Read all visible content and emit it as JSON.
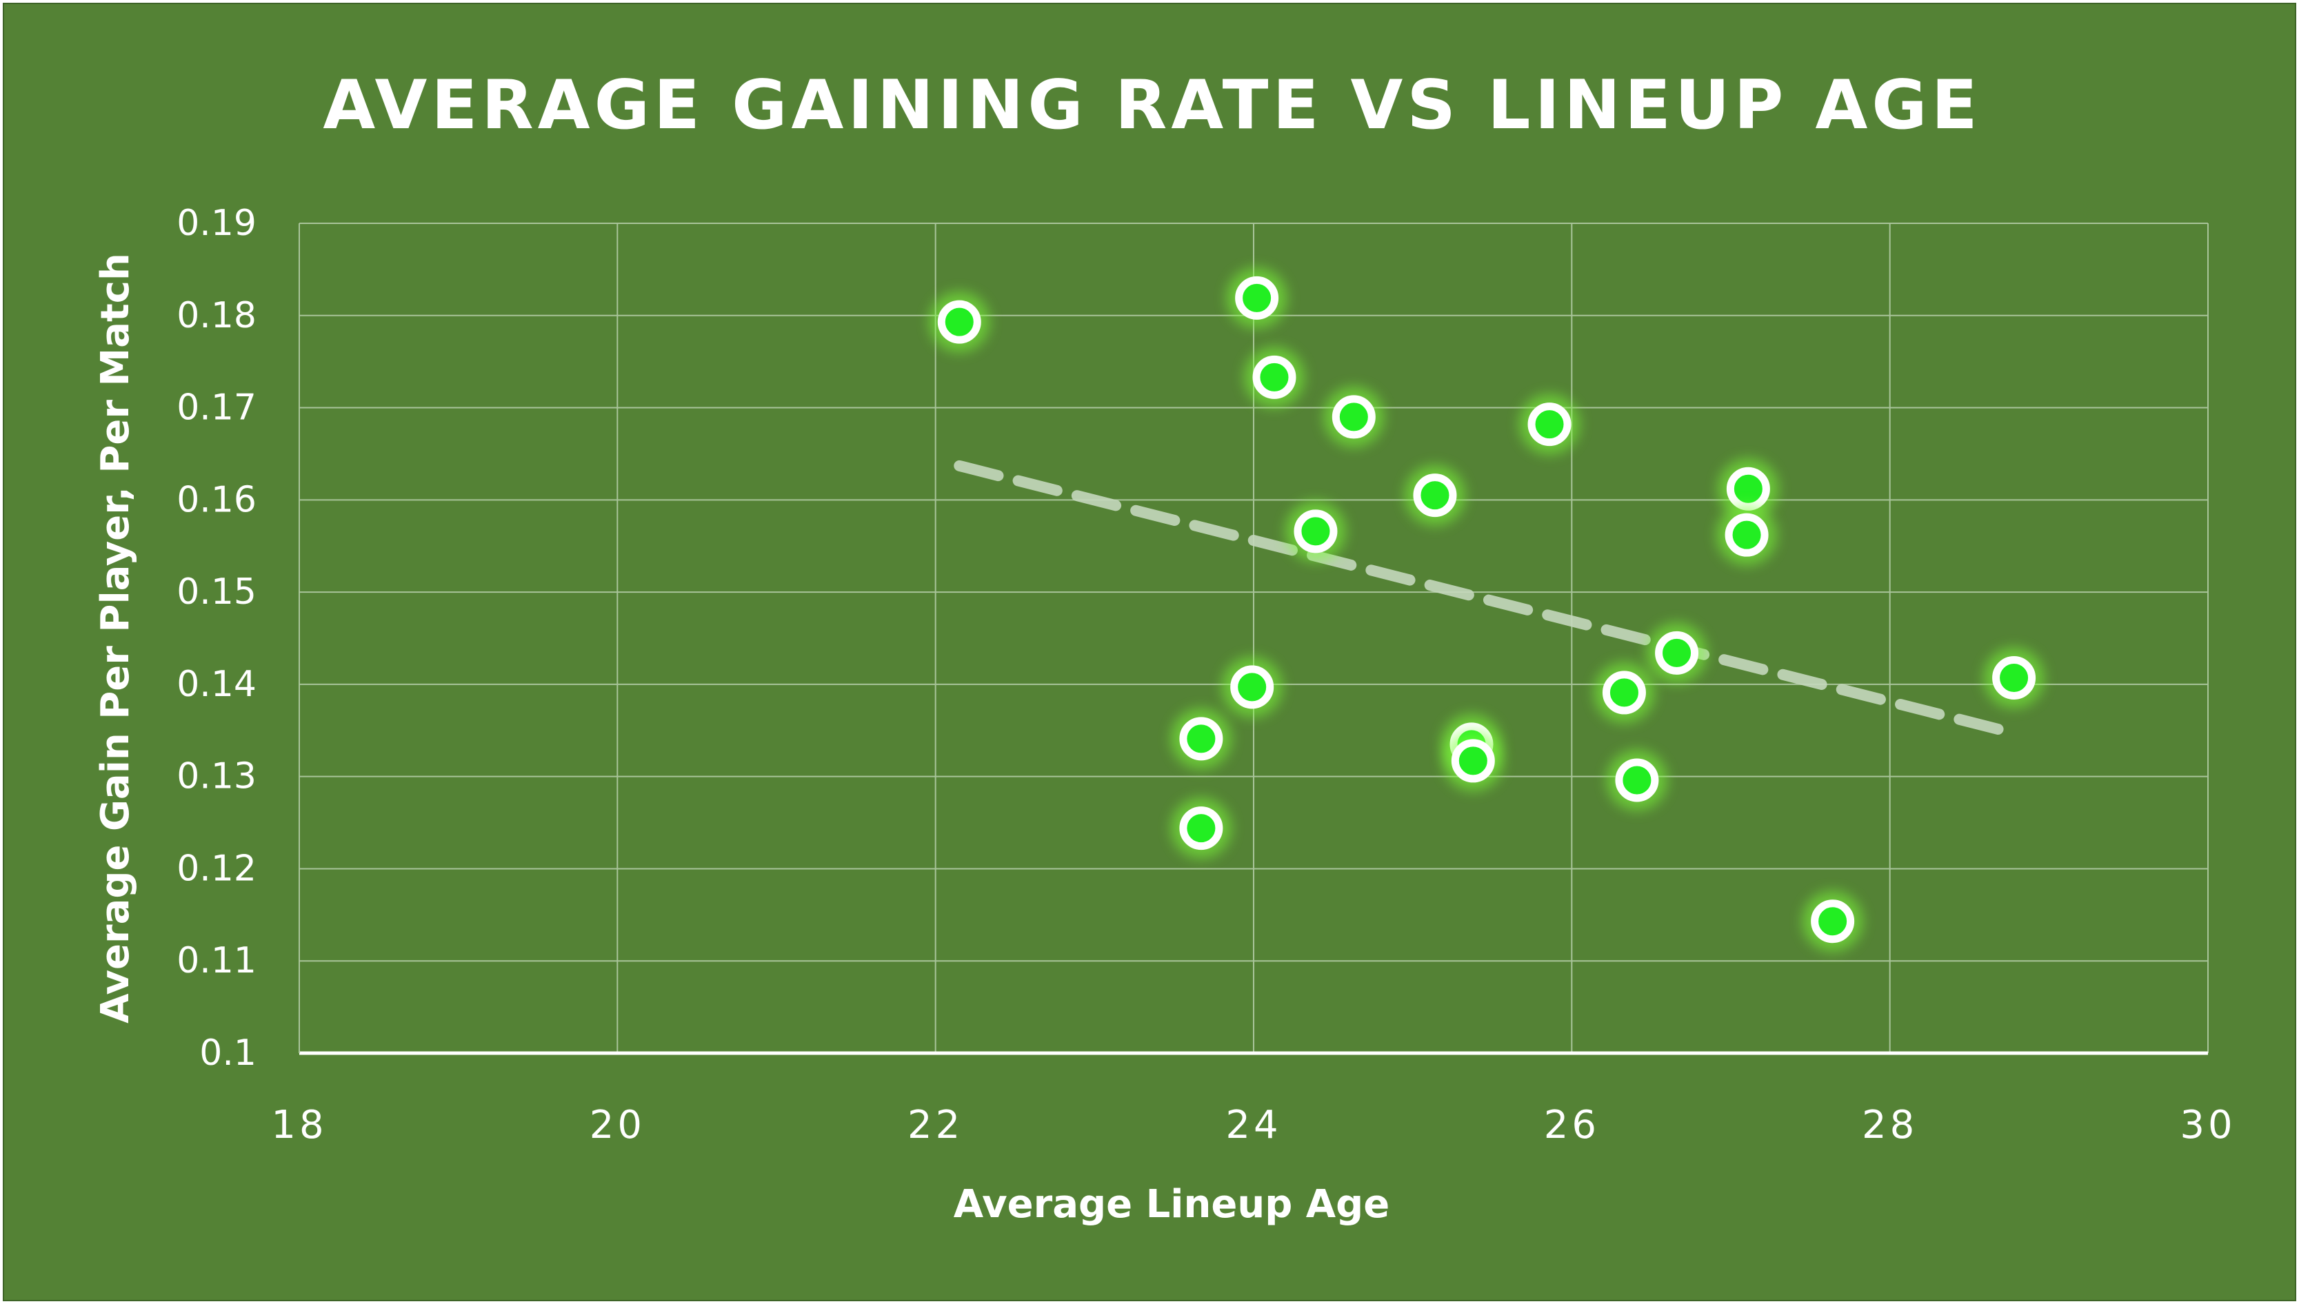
{
  "chart_data": {
    "type": "scatter",
    "title": "AVERAGE GAINING RATE VS LINEUP AGE",
    "xlabel": "Average Lineup Age",
    "ylabel": "Average Gain Per Player, Per Match",
    "xlim": [
      18,
      30
    ],
    "ylim": [
      0.1,
      0.19
    ],
    "x_ticks": [
      18,
      20,
      22,
      24,
      26,
      28,
      30
    ],
    "x_tick_labels": [
      "18",
      "20",
      "22",
      "24",
      "26",
      "28",
      "30"
    ],
    "y_ticks": [
      0.1,
      0.11,
      0.12,
      0.13,
      0.14,
      0.15,
      0.16,
      0.17,
      0.18,
      0.19
    ],
    "y_tick_labels": [
      "0.1",
      "0.11",
      "0.12",
      "0.13",
      "0.14",
      "0.15",
      "0.16",
      "0.17",
      "0.18",
      "0.19"
    ],
    "grid": true,
    "legend": "none",
    "series": [
      {
        "points": [
          {
            "x": 22.15,
            "y": 0.1793
          },
          {
            "x": 24.02,
            "y": 0.1819
          },
          {
            "x": 24.13,
            "y": 0.1733
          },
          {
            "x": 24.63,
            "y": 0.169
          },
          {
            "x": 25.86,
            "y": 0.1682
          },
          {
            "x": 25.14,
            "y": 0.1605
          },
          {
            "x": 24.39,
            "y": 0.1566
          },
          {
            "x": 27.11,
            "y": 0.1612
          },
          {
            "x": 27.1,
            "y": 0.1562
          },
          {
            "x": 26.66,
            "y": 0.1434
          },
          {
            "x": 26.33,
            "y": 0.1391
          },
          {
            "x": 28.78,
            "y": 0.1407
          },
          {
            "x": 23.99,
            "y": 0.1397
          },
          {
            "x": 23.67,
            "y": 0.1341
          },
          {
            "x": 25.37,
            "y": 0.1335
          },
          {
            "x": 25.38,
            "y": 0.1317
          },
          {
            "x": 26.41,
            "y": 0.1296
          },
          {
            "x": 23.67,
            "y": 0.1244
          },
          {
            "x": 27.64,
            "y": 0.1143
          }
        ]
      }
    ],
    "trendline": {
      "type": "linear",
      "x": [
        22.15,
        28.78
      ],
      "y": [
        0.1637,
        0.1347
      ],
      "style": "dashed"
    },
    "colors": {
      "background": "#548235",
      "grid": "#a9c49a",
      "axis": "#ffffff",
      "marker_fill": "#22ee22",
      "marker_ring": "#ffffff",
      "marker_glow": "#7dff3a",
      "trendline": "#c5d8bd"
    }
  }
}
